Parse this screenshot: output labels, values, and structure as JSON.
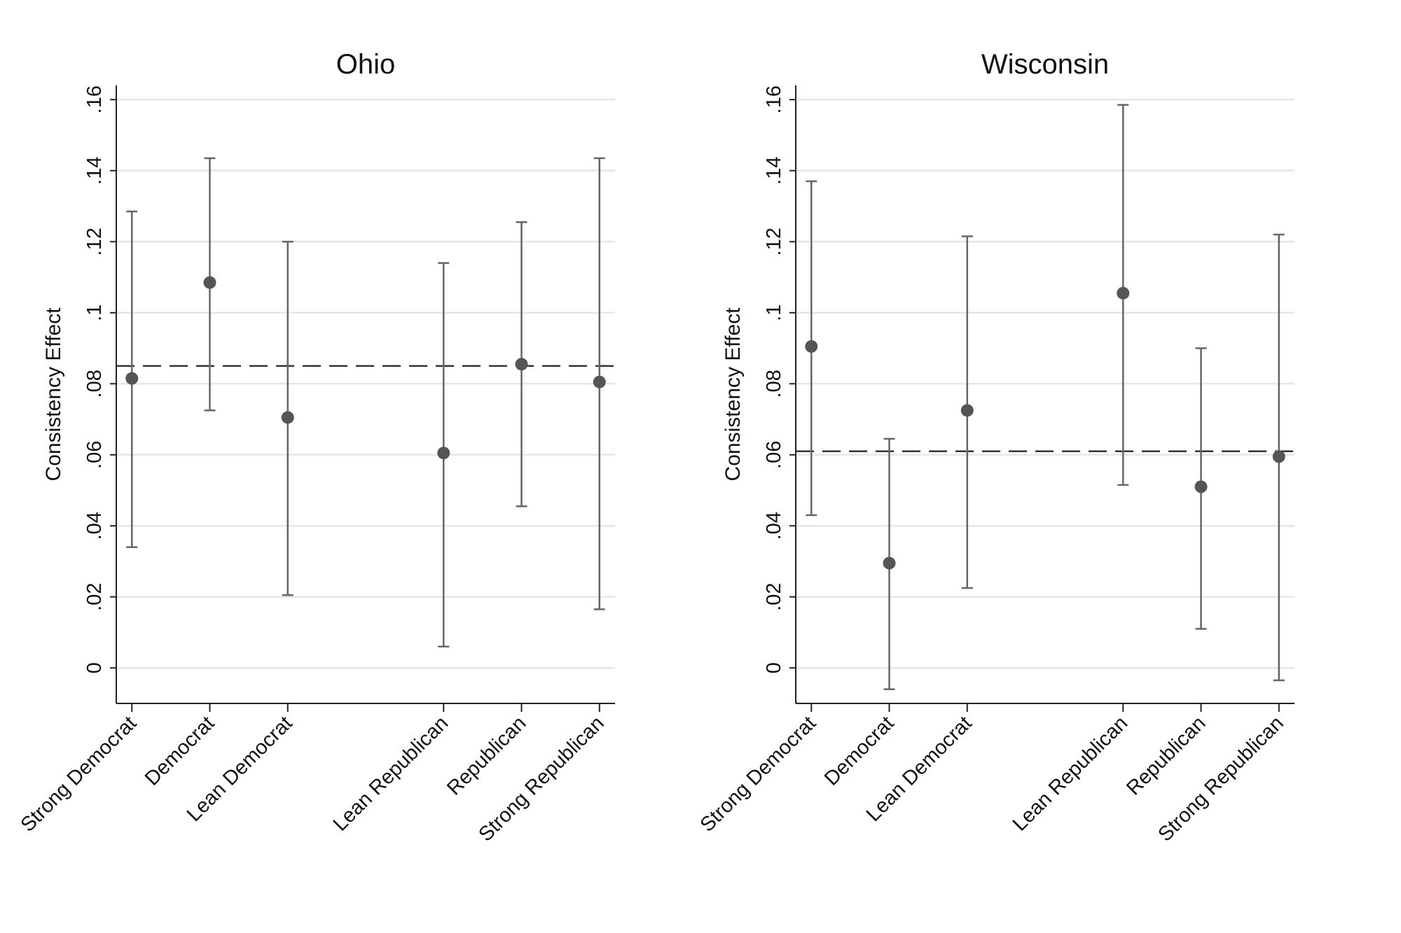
{
  "chart_data": [
    {
      "type": "scatter",
      "title": "Ohio",
      "ylabel": "Consistency Effect",
      "xlabel": "",
      "ylim": [
        -0.01,
        0.164
      ],
      "yticks": [
        0,
        0.02,
        0.04,
        0.06,
        0.08,
        0.1,
        0.12,
        0.14,
        0.16
      ],
      "ytick_labels": [
        "0",
        ".02",
        ".04",
        ".06",
        ".08",
        ".1",
        ".12",
        ".14",
        ".16"
      ],
      "grid": true,
      "categories": [
        "Strong Democrat",
        "Democrat",
        "Lean Democrat",
        "Lean Republican",
        "Republican",
        "Strong Republican"
      ],
      "x": [
        1,
        2,
        3,
        5,
        6,
        7
      ],
      "xlim": [
        0.8,
        7.2
      ],
      "values": [
        0.0815,
        0.1085,
        0.0705,
        0.0605,
        0.0855,
        0.0805
      ],
      "ci_low": [
        0.034,
        0.0725,
        0.0205,
        0.006,
        0.0455,
        0.0165
      ],
      "ci_high": [
        0.1285,
        0.1435,
        0.12,
        0.114,
        0.1255,
        0.1435
      ],
      "reference_line": 0.085,
      "colors": {
        "marker": "#555555",
        "errorbar": "#666666",
        "reference": "#333333",
        "grid": "#e6e6e6",
        "axis": "#222222"
      }
    },
    {
      "type": "scatter",
      "title": "Wisconsin",
      "ylabel": "Consistency Effect",
      "xlabel": "",
      "ylim": [
        -0.01,
        0.164
      ],
      "yticks": [
        0,
        0.02,
        0.04,
        0.06,
        0.08,
        0.1,
        0.12,
        0.14,
        0.16
      ],
      "ytick_labels": [
        "0",
        ".02",
        ".04",
        ".06",
        ".08",
        ".1",
        ".12",
        ".14",
        ".16"
      ],
      "grid": true,
      "categories": [
        "Strong Democrat",
        "Democrat",
        "Lean Democrat",
        "Lean Republican",
        "Republican",
        "Strong Republican"
      ],
      "x": [
        1,
        2,
        3,
        5,
        6,
        7
      ],
      "xlim": [
        0.8,
        7.2
      ],
      "values": [
        0.0905,
        0.0295,
        0.0725,
        0.1055,
        0.051,
        0.0595
      ],
      "ci_low": [
        0.043,
        -0.006,
        0.0225,
        0.0515,
        0.011,
        -0.0035
      ],
      "ci_high": [
        0.137,
        0.0645,
        0.1215,
        0.1585,
        0.09,
        0.122
      ],
      "reference_line": 0.061,
      "colors": {
        "marker": "#555555",
        "errorbar": "#666666",
        "reference": "#333333",
        "grid": "#e6e6e6",
        "axis": "#222222"
      }
    }
  ]
}
